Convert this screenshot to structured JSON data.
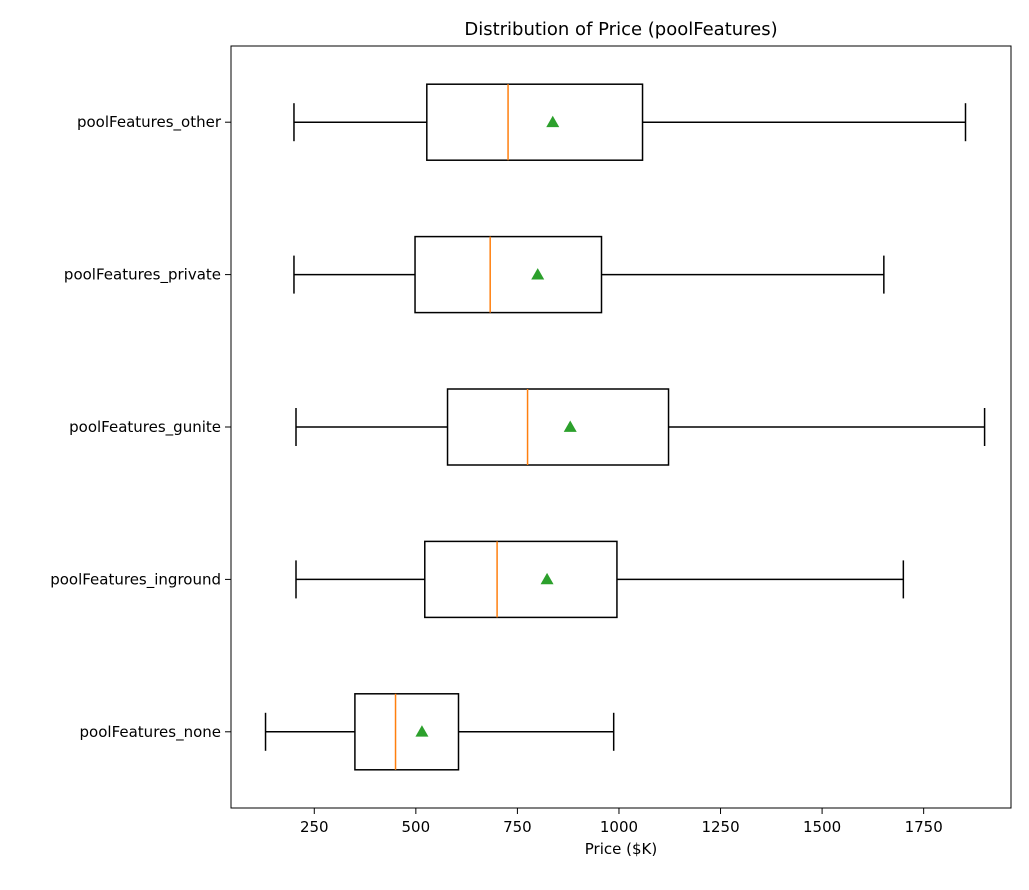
{
  "chart_data": {
    "type": "boxplot",
    "orientation": "horizontal",
    "title": "Distribution of Price (poolFeatures)",
    "xlabel": "Price ($K)",
    "ylabel": "",
    "xlim": [
      45,
      1965
    ],
    "xticks": [
      250,
      500,
      750,
      1000,
      1250,
      1500,
      1750
    ],
    "grid": false,
    "colors": {
      "median": "#ff7f0e",
      "mean": "#2ca02c",
      "box": "#000000"
    },
    "categories": [
      "poolFeatures_other",
      "poolFeatures_private",
      "poolFeatures_gunite",
      "poolFeatures_inground",
      "poolFeatures_none"
    ],
    "boxes": [
      {
        "category": "poolFeatures_other",
        "whislo": 200,
        "q1": 527,
        "median": 727,
        "mean": 837,
        "q3": 1058,
        "whishi": 1853
      },
      {
        "category": "poolFeatures_private",
        "whislo": 200,
        "q1": 498,
        "median": 683,
        "mean": 800,
        "q3": 957,
        "whishi": 1652
      },
      {
        "category": "poolFeatures_gunite",
        "whislo": 205,
        "q1": 578,
        "median": 775,
        "mean": 880,
        "q3": 1122,
        "whishi": 1900
      },
      {
        "category": "poolFeatures_inground",
        "whislo": 205,
        "q1": 522,
        "median": 700,
        "mean": 823,
        "q3": 995,
        "whishi": 1700
      },
      {
        "category": "poolFeatures_none",
        "whislo": 130,
        "q1": 350,
        "median": 450,
        "mean": 515,
        "q3": 605,
        "whishi": 987
      }
    ]
  }
}
